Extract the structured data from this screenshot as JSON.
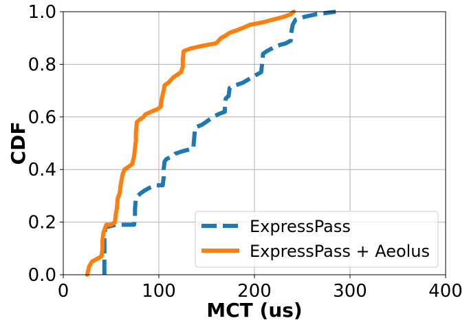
{
  "chart_data": {
    "type": "line",
    "title": "",
    "xlabel": "MCT (us)",
    "ylabel": "CDF",
    "xlim": [
      0,
      400
    ],
    "ylim": [
      0,
      1.0
    ],
    "xticks": [
      0,
      100,
      200,
      300,
      400
    ],
    "yticks": [
      0.0,
      0.2,
      0.4,
      0.6,
      0.8,
      1.0
    ],
    "xtick_labels": [
      "0",
      "100",
      "200",
      "300",
      "400"
    ],
    "ytick_labels": [
      "0.0",
      "0.2",
      "0.4",
      "0.6",
      "0.8",
      "1.0"
    ],
    "grid": true,
    "legend_position": "lower-right",
    "series": [
      {
        "name": "ExpressPass",
        "color": "#1f77b4",
        "style": "dashed",
        "points": [
          [
            43,
            0.0
          ],
          [
            43,
            0.03
          ],
          [
            43,
            0.06
          ],
          [
            43,
            0.1
          ],
          [
            43,
            0.14
          ],
          [
            44,
            0.18
          ],
          [
            55,
            0.19
          ],
          [
            74,
            0.19
          ],
          [
            75,
            0.22
          ],
          [
            75,
            0.25
          ],
          [
            76,
            0.29
          ],
          [
            78,
            0.3
          ],
          [
            81,
            0.31
          ],
          [
            85,
            0.32
          ],
          [
            90,
            0.33
          ],
          [
            97,
            0.34
          ],
          [
            104,
            0.34
          ],
          [
            105,
            0.37
          ],
          [
            105,
            0.4
          ],
          [
            106,
            0.43
          ],
          [
            108,
            0.44
          ],
          [
            114,
            0.45
          ],
          [
            117,
            0.46
          ],
          [
            125,
            0.47
          ],
          [
            136,
            0.48
          ],
          [
            137,
            0.52
          ],
          [
            138,
            0.56
          ],
          [
            145,
            0.57
          ],
          [
            153,
            0.59
          ],
          [
            162,
            0.61
          ],
          [
            169,
            0.62
          ],
          [
            169,
            0.65
          ],
          [
            170,
            0.67
          ],
          [
            173,
            0.68
          ],
          [
            174,
            0.71
          ],
          [
            180,
            0.72
          ],
          [
            188,
            0.73
          ],
          [
            197,
            0.75
          ],
          [
            207,
            0.77
          ],
          [
            208,
            0.8
          ],
          [
            209,
            0.84
          ],
          [
            213,
            0.85
          ],
          [
            223,
            0.87
          ],
          [
            233,
            0.88
          ],
          [
            238,
            0.89
          ],
          [
            238,
            0.91
          ],
          [
            240,
            0.95
          ],
          [
            243,
            0.97
          ],
          [
            252,
            0.98
          ],
          [
            264,
            0.99
          ],
          [
            285,
            1.0
          ]
        ]
      },
      {
        "name": "ExpressPass + Aeolus",
        "color": "#ff7f0e",
        "style": "solid",
        "points": [
          [
            25,
            0.0
          ],
          [
            27,
            0.03
          ],
          [
            30,
            0.05
          ],
          [
            35,
            0.06
          ],
          [
            40,
            0.07
          ],
          [
            41,
            0.1
          ],
          [
            41,
            0.13
          ],
          [
            42,
            0.16
          ],
          [
            45,
            0.19
          ],
          [
            50,
            0.19
          ],
          [
            54,
            0.2
          ],
          [
            55,
            0.23
          ],
          [
            56,
            0.25
          ],
          [
            57,
            0.29
          ],
          [
            59,
            0.31
          ],
          [
            60,
            0.34
          ],
          [
            61,
            0.36
          ],
          [
            62,
            0.38
          ],
          [
            64,
            0.4
          ],
          [
            68,
            0.41
          ],
          [
            72,
            0.42
          ],
          [
            74,
            0.45
          ],
          [
            75,
            0.48
          ],
          [
            76,
            0.51
          ],
          [
            76,
            0.54
          ],
          [
            77,
            0.58
          ],
          [
            80,
            0.59
          ],
          [
            84,
            0.6
          ],
          [
            86,
            0.61
          ],
          [
            92,
            0.62
          ],
          [
            99,
            0.63
          ],
          [
            102,
            0.64
          ],
          [
            103,
            0.67
          ],
          [
            105,
            0.7
          ],
          [
            106,
            0.72
          ],
          [
            110,
            0.73
          ],
          [
            115,
            0.75
          ],
          [
            123,
            0.77
          ],
          [
            125,
            0.79
          ],
          [
            125,
            0.82
          ],
          [
            126,
            0.85
          ],
          [
            133,
            0.86
          ],
          [
            145,
            0.87
          ],
          [
            160,
            0.88
          ],
          [
            165,
            0.9
          ],
          [
            170,
            0.91
          ],
          [
            174,
            0.92
          ],
          [
            182,
            0.93
          ],
          [
            189,
            0.94
          ],
          [
            195,
            0.95
          ],
          [
            209,
            0.96
          ],
          [
            230,
            0.98
          ],
          [
            238,
            0.99
          ],
          [
            241,
            1.0
          ]
        ]
      }
    ]
  }
}
